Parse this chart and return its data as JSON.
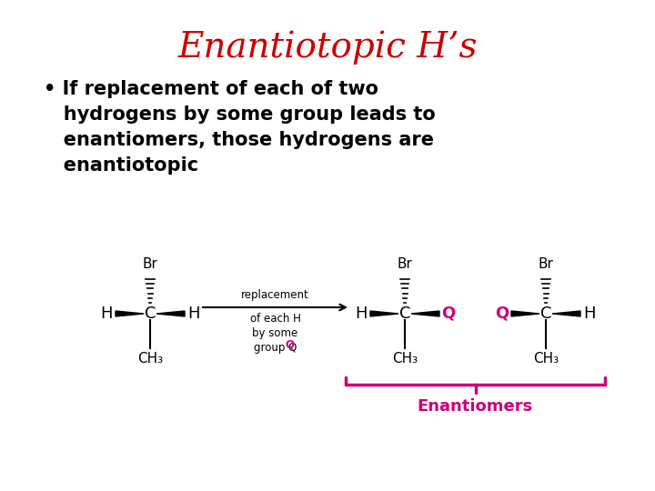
{
  "title": "Enantiotopic H’s",
  "title_color": "#cc0000",
  "title_fontsize": 28,
  "bullet_text": "• If replacement of each of two\n   hydrogens by some group leads to\n   enantiomers, those hydrogens are\n   enantiotopic",
  "bullet_fontsize": 15,
  "bullet_color": "#000000",
  "background_color": "#ffffff",
  "magenta": "#cc007a",
  "black": "#000000",
  "arrow_label_line1": "replacement",
  "arrow_label_line2": "of each H",
  "arrow_label_line3": "by some",
  "arrow_label_line4": "group Q",
  "enantiomers_label": "Enantiomers"
}
